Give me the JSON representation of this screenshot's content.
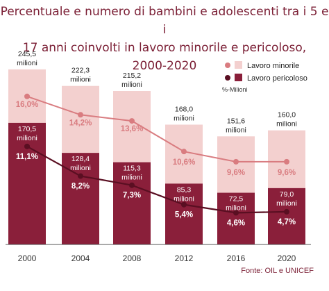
{
  "title_lines": [
    "Percentuale e numero di bambini e adolescenti tra i 5 e i",
    "17 anni  coinvolti in lavoro minorile e pericoloso,",
    "2000-2020"
  ],
  "source": "Fonte: OIL e UNICEF",
  "colors": {
    "title": "#7b1f35",
    "minorile_bar": "#f3d0cf",
    "pericoloso_bar": "#8a1f3a",
    "minorile_line": "#d97c80",
    "pericoloso_line": "#5a0f22",
    "minorile_label": "#d97c80"
  },
  "chart_data": {
    "type": "bar",
    "categories": [
      "2000",
      "2004",
      "2008",
      "2012",
      "2016",
      "2020"
    ],
    "ylim": [
      0,
      260
    ],
    "series": [
      {
        "name": "Lavoro minorile",
        "values": [
          245.5,
          222.3,
          215.2,
          168.0,
          151.6,
          160.0
        ],
        "value_labels": [
          "245,5",
          "222,3",
          "215,2",
          "168,0",
          "151,6",
          "160,0"
        ],
        "percent_labels": [
          "16,0%",
          "14,2%",
          "13,6%",
          "10,6%",
          "9,6%",
          "9,6%"
        ]
      },
      {
        "name": "Lavoro pericoloso",
        "values": [
          170.5,
          128.4,
          115.3,
          85.3,
          72.5,
          79.0
        ],
        "value_labels": [
          "170,5",
          "128,4",
          "115,3",
          "85,3",
          "72,5",
          "79,0"
        ],
        "percent_labels": [
          "11,1%",
          "8,2%",
          "7,3%",
          "5,4%",
          "4,6%",
          "4,7%"
        ]
      }
    ],
    "percent_series": [
      {
        "name": "Lavoro minorile",
        "values": [
          16.0,
          14.2,
          13.6,
          10.6,
          9.6,
          9.6
        ]
      },
      {
        "name": "Lavoro pericoloso",
        "values": [
          11.1,
          8.2,
          7.3,
          5.4,
          4.6,
          4.7
        ]
      }
    ],
    "unit_label": "milioni",
    "legend": {
      "placement": "top-right",
      "items": [
        "Lavoro minorile",
        "Lavoro pericoloso"
      ],
      "note": "%-Milioni"
    }
  }
}
